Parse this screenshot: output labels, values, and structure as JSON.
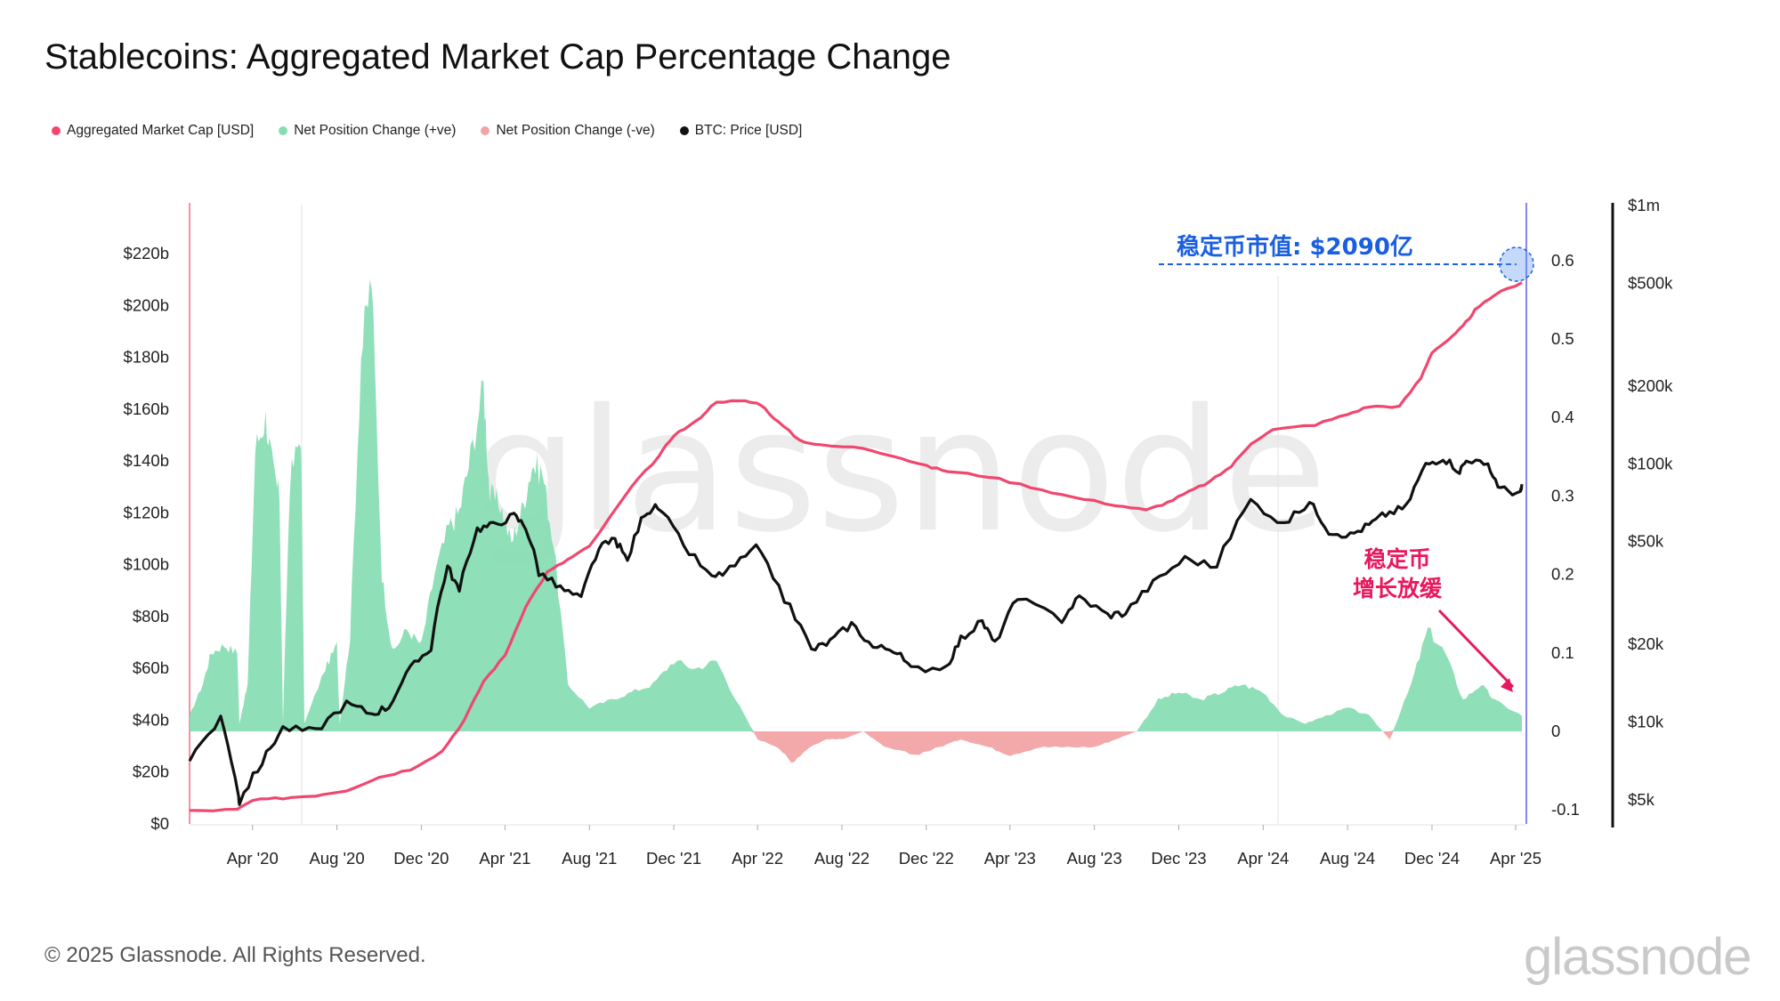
{
  "title": "Stablecoins: Aggregated Market Cap Percentage Change",
  "legend": [
    {
      "label": "Aggregated Market Cap [USD]",
      "color": "#f0476f"
    },
    {
      "label": "Net Position Change (+ve)",
      "color": "#86dcb3"
    },
    {
      "label": "Net Position Change (-ve)",
      "color": "#f2a4a4"
    },
    {
      "label": "BTC: Price [USD]",
      "color": "#111111"
    }
  ],
  "footer": {
    "copyright": "© 2025 Glassnode. All Rights Reserved.",
    "brand": "glassnode"
  },
  "watermark": "glassnode",
  "annotations": {
    "market_cap_label": "稳定币市值: $2090亿",
    "slowdown_line1": "稳定币",
    "slowdown_line2": "增长放缓"
  },
  "chart_data": {
    "type": "line",
    "x_ticks": [
      "Apr '20",
      "Aug '20",
      "Dec '20",
      "Apr '21",
      "Aug '21",
      "Dec '21",
      "Apr '22",
      "Aug '22",
      "Dec '22",
      "Apr '23",
      "Aug '23",
      "Dec '23",
      "Apr '24",
      "Aug '24",
      "Dec '24",
      "Apr '25"
    ],
    "x_range": [
      "2020-01-01",
      "2025-04-10"
    ],
    "y_left": {
      "ticks": [
        "$0",
        "$20b",
        "$40b",
        "$60b",
        "$80b",
        "$100b",
        "$120b",
        "$140b",
        "$160b",
        "$180b",
        "$200b",
        "$220b"
      ],
      "range": [
        0,
        220
      ]
    },
    "y_mid": {
      "ticks": [
        "-0.1",
        "0",
        "0.1",
        "0.2",
        "0.3",
        "0.4",
        "0.5",
        "0.6"
      ],
      "range": [
        -0.1,
        0.6
      ]
    },
    "y_right": {
      "ticks": [
        "$5k",
        "$10k",
        "$20k",
        "$50k",
        "$100k",
        "$200k",
        "$500k",
        "$1m"
      ],
      "scale": "log"
    },
    "series": [
      {
        "name": "Aggregated Market Cap [USD]",
        "axis": "left",
        "unit": "USD billions",
        "color": "#f0476f",
        "points": [
          [
            "2020-01-01",
            5
          ],
          [
            "2020-03-10",
            5.5
          ],
          [
            "2020-04-01",
            9
          ],
          [
            "2020-05-15",
            10
          ],
          [
            "2020-07-01",
            11
          ],
          [
            "2020-08-15",
            13
          ],
          [
            "2020-10-01",
            18
          ],
          [
            "2020-11-15",
            21
          ],
          [
            "2020-12-31",
            28
          ],
          [
            "2021-02-01",
            40
          ],
          [
            "2021-03-01",
            55
          ],
          [
            "2021-04-01",
            65
          ],
          [
            "2021-05-01",
            84
          ],
          [
            "2021-06-01",
            97
          ],
          [
            "2021-07-01",
            102
          ],
          [
            "2021-08-01",
            107
          ],
          [
            "2021-10-01",
            130
          ],
          [
            "2021-11-10",
            142
          ],
          [
            "2021-12-01",
            150
          ],
          [
            "2022-01-01",
            155
          ],
          [
            "2022-02-01",
            163
          ],
          [
            "2022-03-15",
            163
          ],
          [
            "2022-04-05",
            162
          ],
          [
            "2022-05-01",
            155
          ],
          [
            "2022-06-01",
            148
          ],
          [
            "2022-07-01",
            146
          ],
          [
            "2022-09-01",
            145
          ],
          [
            "2022-10-15",
            142
          ],
          [
            "2022-12-01",
            138
          ],
          [
            "2023-01-01",
            136
          ],
          [
            "2023-03-01",
            134
          ],
          [
            "2023-05-01",
            130
          ],
          [
            "2023-07-01",
            126
          ],
          [
            "2023-09-01",
            123
          ],
          [
            "2023-10-15",
            121
          ],
          [
            "2023-11-15",
            124
          ],
          [
            "2023-12-15",
            128
          ],
          [
            "2024-01-15",
            132
          ],
          [
            "2024-02-15",
            138
          ],
          [
            "2024-03-15",
            147
          ],
          [
            "2024-04-15",
            152
          ],
          [
            "2024-06-15",
            154
          ],
          [
            "2024-08-01",
            158
          ],
          [
            "2024-09-01",
            161
          ],
          [
            "2024-10-15",
            161
          ],
          [
            "2024-11-15",
            172
          ],
          [
            "2024-12-01",
            182
          ],
          [
            "2024-12-31",
            188
          ],
          [
            "2025-01-15",
            192
          ],
          [
            "2025-02-01",
            198
          ],
          [
            "2025-03-01",
            204
          ],
          [
            "2025-04-10",
            209
          ]
        ]
      },
      {
        "name": "Net Position Change (+ve / -ve)",
        "axis": "mid",
        "unit": "fraction",
        "positive_color": "#86dcb3",
        "negative_color": "#f2a4a4",
        "points": [
          [
            "2020-01-01",
            0.02
          ],
          [
            "2020-01-20",
            0.06
          ],
          [
            "2020-02-01",
            0.1
          ],
          [
            "2020-02-20",
            0.11
          ],
          [
            "2020-03-10",
            0.1
          ],
          [
            "2020-03-13",
            0.01
          ],
          [
            "2020-03-25",
            0.06
          ],
          [
            "2020-04-05",
            0.36
          ],
          [
            "2020-04-20",
            0.4
          ],
          [
            "2020-05-01",
            0.33
          ],
          [
            "2020-05-10",
            0.3
          ],
          [
            "2020-05-15",
            0.01
          ],
          [
            "2020-05-25",
            0.32
          ],
          [
            "2020-06-10",
            0.38
          ],
          [
            "2020-06-15",
            0.01
          ],
          [
            "2020-07-15",
            0.08
          ],
          [
            "2020-08-01",
            0.11
          ],
          [
            "2020-08-05",
            0.01
          ],
          [
            "2020-08-20",
            0.12
          ],
          [
            "2020-09-05",
            0.48
          ],
          [
            "2020-09-20",
            0.58
          ],
          [
            "2020-10-05",
            0.2
          ],
          [
            "2020-10-20",
            0.1
          ],
          [
            "2020-11-10",
            0.13
          ],
          [
            "2020-12-01",
            0.11
          ],
          [
            "2020-12-20",
            0.2
          ],
          [
            "2021-01-10",
            0.26
          ],
          [
            "2021-01-25",
            0.28
          ],
          [
            "2021-02-10",
            0.35
          ],
          [
            "2021-03-01",
            0.44
          ],
          [
            "2021-03-10",
            0.3
          ],
          [
            "2021-03-25",
            0.29
          ],
          [
            "2021-04-10",
            0.24
          ],
          [
            "2021-04-25",
            0.28
          ],
          [
            "2021-05-10",
            0.34
          ],
          [
            "2021-05-25",
            0.33
          ],
          [
            "2021-06-10",
            0.24
          ],
          [
            "2021-07-01",
            0.06
          ],
          [
            "2021-08-01",
            0.03
          ],
          [
            "2021-09-01",
            0.04
          ],
          [
            "2021-10-01",
            0.05
          ],
          [
            "2021-11-01",
            0.06
          ],
          [
            "2021-12-01",
            0.09
          ],
          [
            "2022-01-01",
            0.08
          ],
          [
            "2022-02-01",
            0.09
          ],
          [
            "2022-03-01",
            0.04
          ],
          [
            "2022-04-01",
            -0.01
          ],
          [
            "2022-05-01",
            -0.02
          ],
          [
            "2022-05-20",
            -0.04
          ],
          [
            "2022-06-15",
            -0.02
          ],
          [
            "2022-07-10",
            -0.01
          ],
          [
            "2022-08-01",
            -0.01
          ],
          [
            "2022-09-01",
            0.0
          ],
          [
            "2022-10-01",
            -0.02
          ],
          [
            "2022-11-15",
            -0.03
          ],
          [
            "2022-12-20",
            -0.02
          ],
          [
            "2023-01-20",
            -0.01
          ],
          [
            "2023-03-01",
            -0.02
          ],
          [
            "2023-04-01",
            -0.03
          ],
          [
            "2023-05-15",
            -0.02
          ],
          [
            "2023-06-15",
            -0.02
          ],
          [
            "2023-08-01",
            -0.02
          ],
          [
            "2023-09-01",
            -0.01
          ],
          [
            "2023-10-01",
            0.0
          ],
          [
            "2023-11-01",
            0.04
          ],
          [
            "2023-12-01",
            0.05
          ],
          [
            "2024-01-01",
            0.04
          ],
          [
            "2024-02-01",
            0.05
          ],
          [
            "2024-03-01",
            0.06
          ],
          [
            "2024-04-01",
            0.05
          ],
          [
            "2024-05-01",
            0.02
          ],
          [
            "2024-06-01",
            0.01
          ],
          [
            "2024-07-01",
            0.02
          ],
          [
            "2024-08-01",
            0.03
          ],
          [
            "2024-09-01",
            0.02
          ],
          [
            "2024-10-01",
            -0.01
          ],
          [
            "2024-11-01",
            0.06
          ],
          [
            "2024-11-25",
            0.13
          ],
          [
            "2024-12-20",
            0.1
          ],
          [
            "2025-01-15",
            0.04
          ],
          [
            "2025-02-10",
            0.06
          ],
          [
            "2025-03-01",
            0.04
          ],
          [
            "2025-04-10",
            0.02
          ]
        ]
      },
      {
        "name": "BTC: Price [USD]",
        "axis": "right",
        "unit": "USD",
        "color": "#111111",
        "points": [
          [
            "2020-01-01",
            7200
          ],
          [
            "2020-02-15",
            10200
          ],
          [
            "2020-03-12",
            5100
          ],
          [
            "2020-03-13",
            4900
          ],
          [
            "2020-04-15",
            7000
          ],
          [
            "2020-05-15",
            9500
          ],
          [
            "2020-07-01",
            9200
          ],
          [
            "2020-08-15",
            11800
          ],
          [
            "2020-09-20",
            10800
          ],
          [
            "2020-10-15",
            11500
          ],
          [
            "2020-11-15",
            16000
          ],
          [
            "2020-12-15",
            19500
          ],
          [
            "2021-01-08",
            40000
          ],
          [
            "2021-01-25",
            32000
          ],
          [
            "2021-02-20",
            56000
          ],
          [
            "2021-03-15",
            58000
          ],
          [
            "2021-04-14",
            63000
          ],
          [
            "2021-05-01",
            57000
          ],
          [
            "2021-05-20",
            38000
          ],
          [
            "2021-06-20",
            33000
          ],
          [
            "2021-07-20",
            30000
          ],
          [
            "2021-08-15",
            47000
          ],
          [
            "2021-09-07",
            51000
          ],
          [
            "2021-09-25",
            42000
          ],
          [
            "2021-10-20",
            65000
          ],
          [
            "2021-11-08",
            68000
          ],
          [
            "2021-12-15",
            48000
          ],
          [
            "2022-01-25",
            36000
          ],
          [
            "2022-02-20",
            39000
          ],
          [
            "2022-03-30",
            47000
          ],
          [
            "2022-05-10",
            30000
          ],
          [
            "2022-06-18",
            19000
          ],
          [
            "2022-07-15",
            20500
          ],
          [
            "2022-08-15",
            24000
          ],
          [
            "2022-09-15",
            19500
          ],
          [
            "2022-10-15",
            19200
          ],
          [
            "2022-11-09",
            16000
          ],
          [
            "2022-12-31",
            16500
          ],
          [
            "2023-01-20",
            21000
          ],
          [
            "2023-02-20",
            24500
          ],
          [
            "2023-03-10",
            20000
          ],
          [
            "2023-04-12",
            30000
          ],
          [
            "2023-06-15",
            25000
          ],
          [
            "2023-07-10",
            30500
          ],
          [
            "2023-08-20",
            26000
          ],
          [
            "2023-09-15",
            26500
          ],
          [
            "2023-10-25",
            34500
          ],
          [
            "2023-12-10",
            43000
          ],
          [
            "2024-01-25",
            40000
          ],
          [
            "2024-03-14",
            72000
          ],
          [
            "2024-05-01",
            58000
          ],
          [
            "2024-06-07",
            71000
          ],
          [
            "2024-07-05",
            55000
          ],
          [
            "2024-08-05",
            53000
          ],
          [
            "2024-09-01",
            58000
          ],
          [
            "2024-09-25",
            64000
          ],
          [
            "2024-10-25",
            68000
          ],
          [
            "2024-11-22",
            99000
          ],
          [
            "2024-12-17",
            106000
          ],
          [
            "2025-01-10",
            94000
          ],
          [
            "2025-01-22",
            105000
          ],
          [
            "2025-02-20",
            97000
          ],
          [
            "2025-03-10",
            80000
          ],
          [
            "2025-04-08",
            77000
          ],
          [
            "2025-04-10",
            82000
          ]
        ]
      }
    ],
    "grid": false
  }
}
